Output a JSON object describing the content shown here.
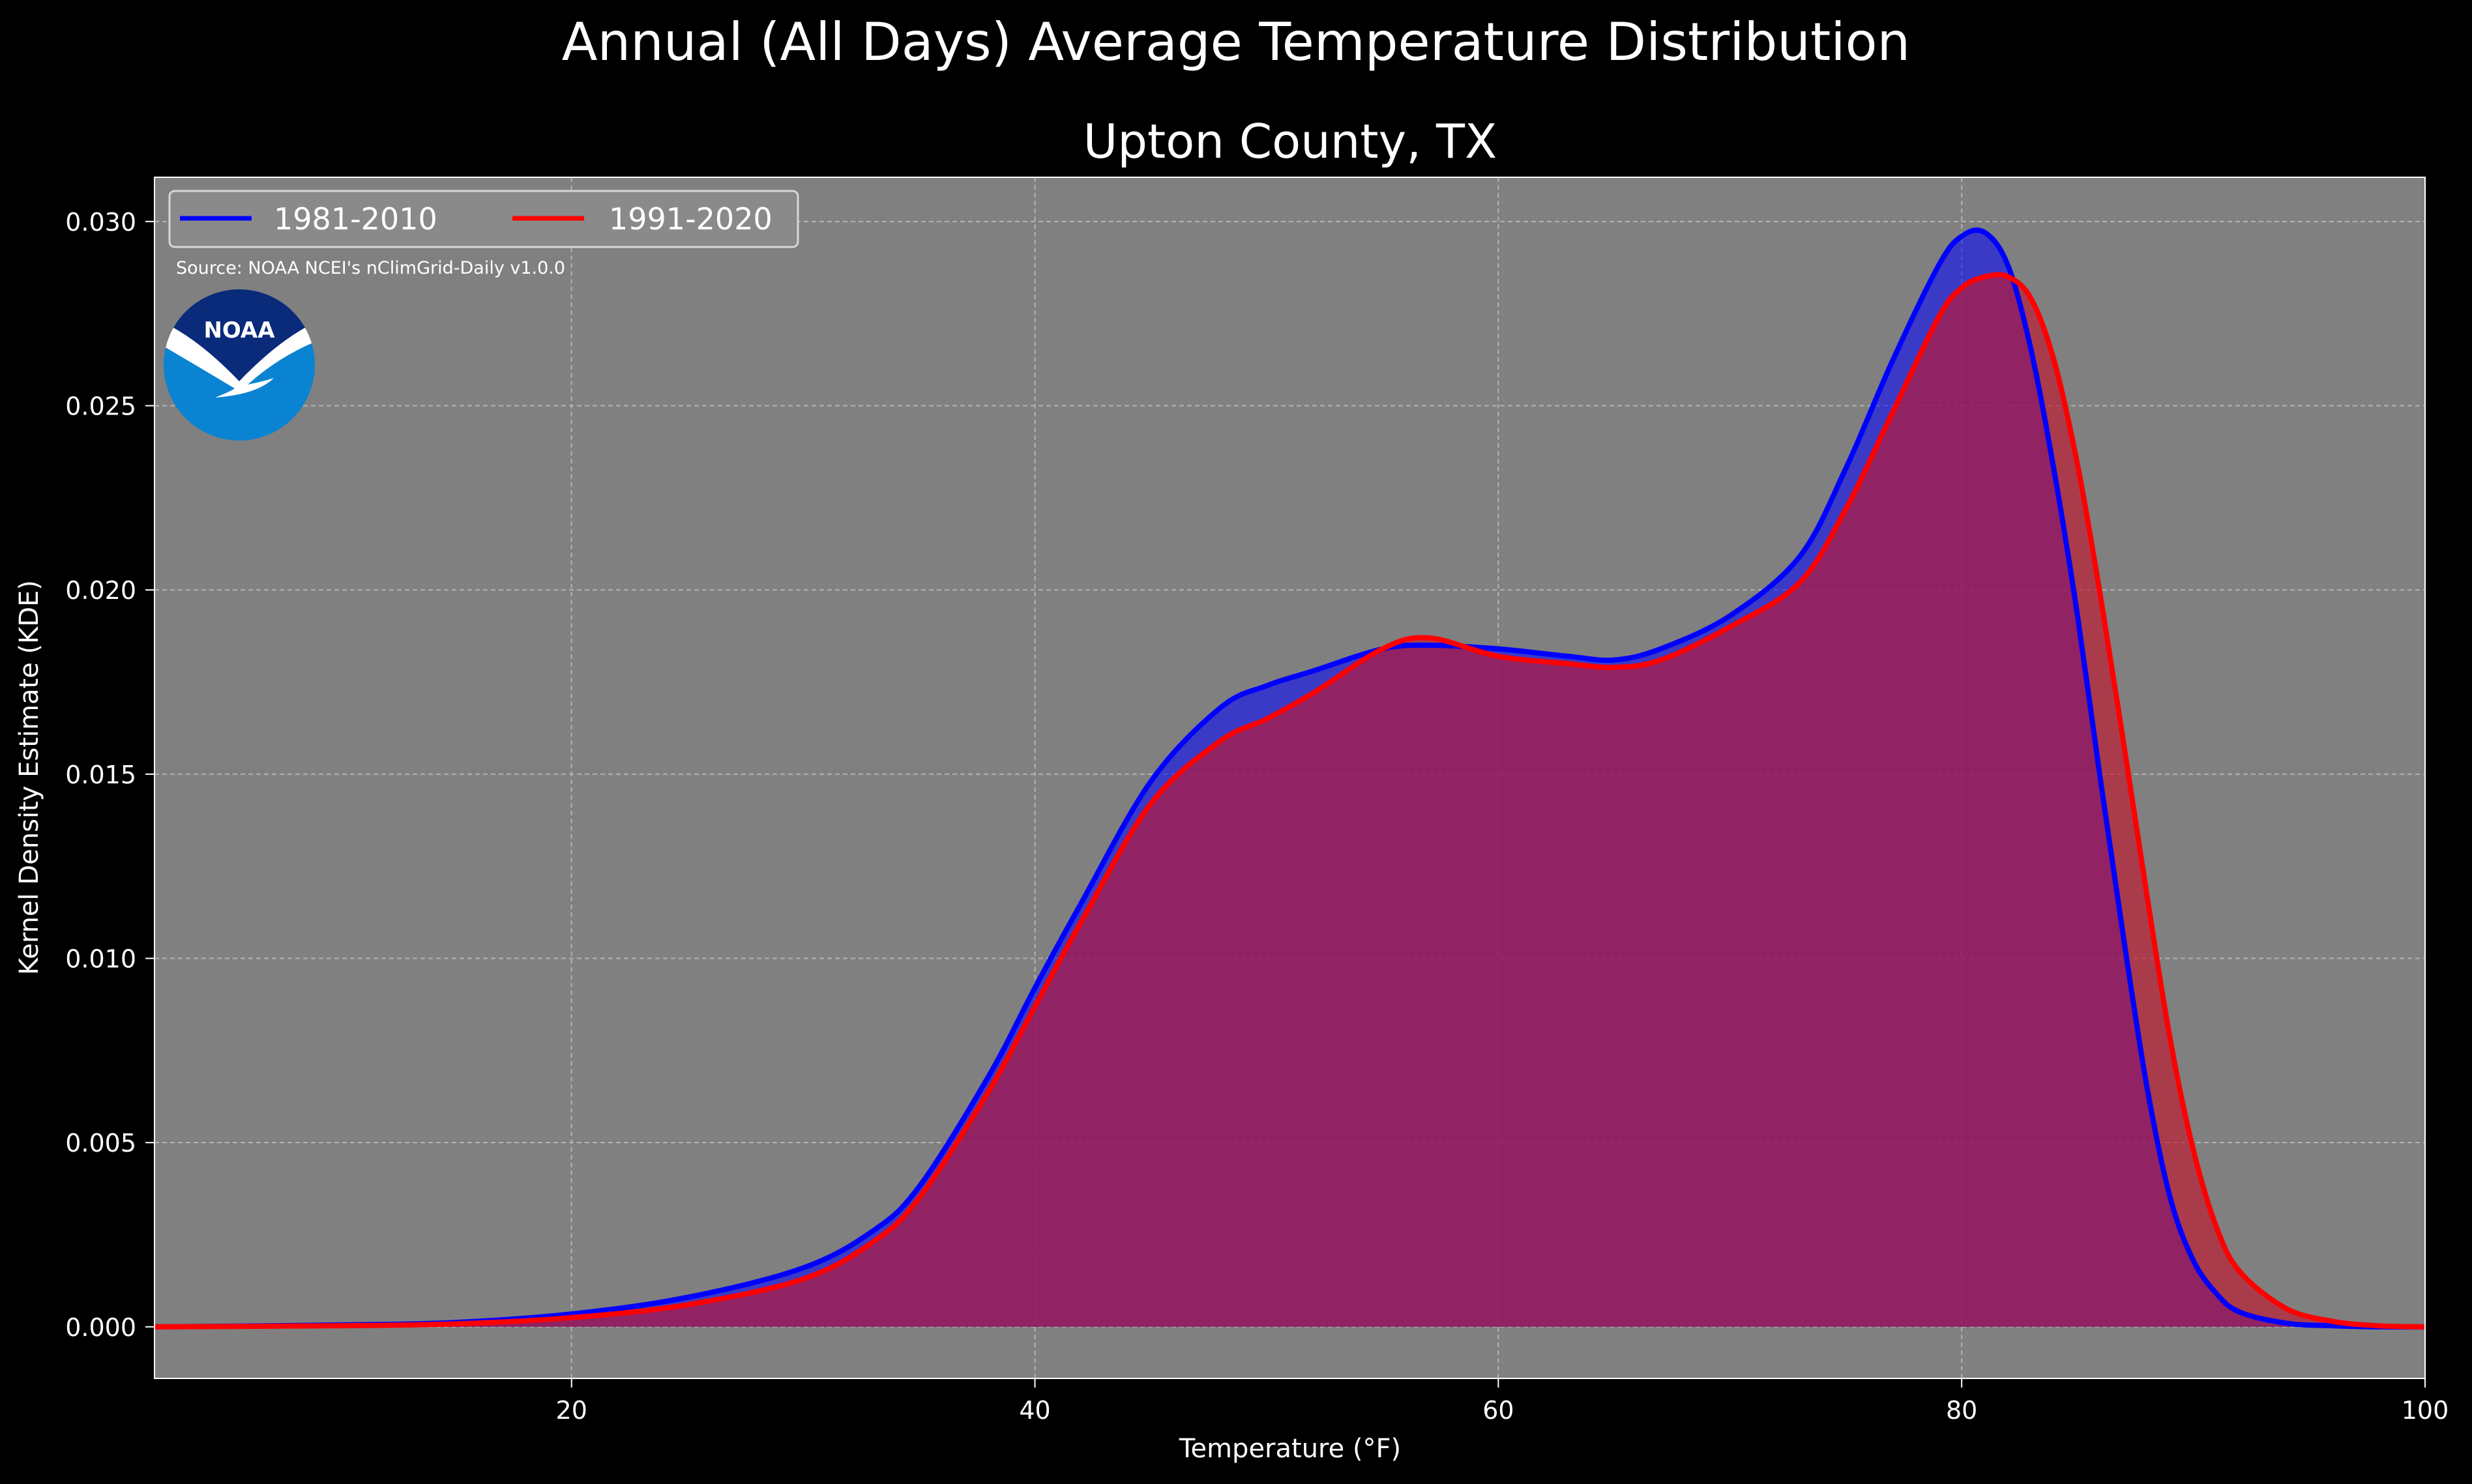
{
  "chart_data": {
    "type": "area",
    "suptitle": "Annual (All Days) Average Temperature Distribution",
    "title": "Upton County, TX",
    "xlabel": "Temperature (°F)",
    "ylabel": "Kernel Density Estimate (KDE)",
    "xlim": [
      2,
      100
    ],
    "ylim": [
      -0.0014,
      0.0312
    ],
    "xticks": [
      20,
      40,
      60,
      80,
      100
    ],
    "xtick_labels": [
      "20",
      "40",
      "60",
      "80",
      "100"
    ],
    "yticks": [
      0.0,
      0.005,
      0.01,
      0.015,
      0.02,
      0.025,
      0.03
    ],
    "ytick_labels": [
      "0.000",
      "0.005",
      "0.010",
      "0.015",
      "0.020",
      "0.025",
      "0.030"
    ],
    "grid": true,
    "legend_position": "top-left",
    "annotation": "Source: NOAA NCEI's nClimGrid-Daily v1.0.0",
    "logo_text": "NOAA",
    "colors": {
      "figure_background": "#000000",
      "plot_background": "#808080",
      "grid": "#b3b3b3",
      "logo_dark": "#0a2a7a",
      "logo_light": "#0a84d2"
    },
    "x": [
      2,
      10,
      15,
      20,
      25,
      30,
      33,
      35,
      38,
      40,
      42,
      45,
      48,
      50,
      52,
      55,
      57,
      60,
      63,
      65,
      67,
      70,
      73,
      75,
      77,
      79,
      80,
      81,
      82,
      83,
      84,
      85,
      86,
      87,
      88,
      89,
      90,
      91,
      92,
      94,
      96,
      98,
      100
    ],
    "series": [
      {
        "name": "1981-2010",
        "line_color": "#0000ff",
        "fill_color": "#0000ff",
        "values": [
          0.0,
          5e-05,
          0.00012,
          0.00035,
          0.0008,
          0.0016,
          0.0026,
          0.0038,
          0.0068,
          0.0092,
          0.0115,
          0.0148,
          0.0168,
          0.0174,
          0.0178,
          0.0184,
          0.0185,
          0.0184,
          0.0182,
          0.0181,
          0.0184,
          0.0193,
          0.0209,
          0.0233,
          0.0262,
          0.0288,
          0.0296,
          0.0297,
          0.0288,
          0.0265,
          0.0232,
          0.0193,
          0.0148,
          0.0105,
          0.0065,
          0.0035,
          0.0018,
          0.0009,
          0.0004,
          0.0001,
          3e-05,
          0.0,
          0.0
        ]
      },
      {
        "name": "1991-2020",
        "line_color": "#ff0000",
        "fill_color": "#c0162e",
        "values": [
          0.0,
          3e-05,
          8e-05,
          0.00025,
          0.0006,
          0.0013,
          0.0023,
          0.0035,
          0.0064,
          0.0087,
          0.011,
          0.0142,
          0.0159,
          0.0165,
          0.0172,
          0.0184,
          0.0187,
          0.0182,
          0.018,
          0.0179,
          0.0181,
          0.019,
          0.0202,
          0.0222,
          0.0248,
          0.0274,
          0.0282,
          0.0285,
          0.0285,
          0.0279,
          0.0262,
          0.0234,
          0.0198,
          0.0158,
          0.0117,
          0.0078,
          0.0048,
          0.0027,
          0.0015,
          0.0005,
          0.00015,
          3e-05,
          0.0
        ]
      }
    ]
  }
}
